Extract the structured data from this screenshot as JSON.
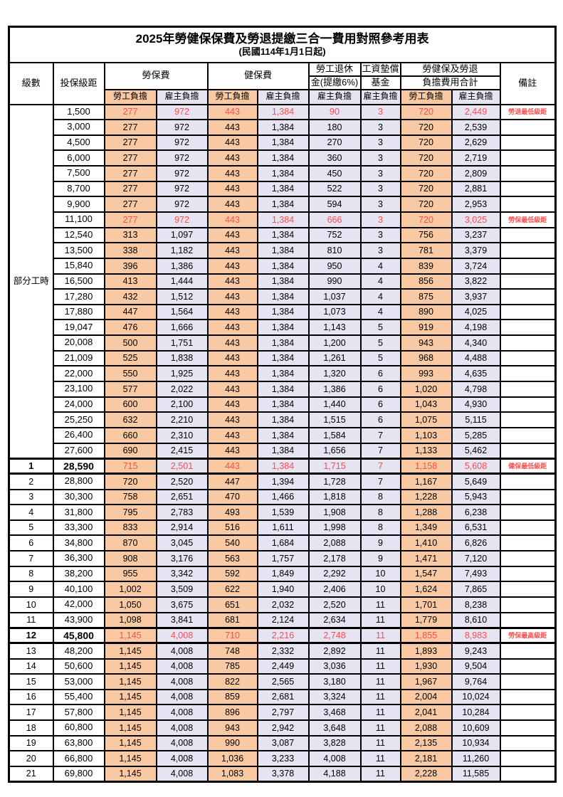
{
  "title": "2025年勞健保保費及勞退提繳三合一費用對照參考用表",
  "subtitle": "(民國114年1月1日起)",
  "colors": {
    "employee_bg": "#f8c9a2",
    "employer_bg": "#e6e3f2",
    "highlight_text": "#ff4d4d",
    "border": "#000000"
  },
  "header": {
    "level": "級數",
    "bracket": "投保級距",
    "labor_ins": "勞保費",
    "health_ins": "健保費",
    "pension_line1": "勞工退休",
    "pension_line2": "金(提繳6%)",
    "fund_line1": "工資墊償",
    "fund_line2": "基金",
    "total_line1": "勞健保及勞退",
    "total_line2": "負擔費用合計",
    "remark": "備註",
    "employee": "勞工負擔",
    "employer": "雇主負擔"
  },
  "part_time": {
    "label": "部分工時",
    "rowspan": 23
  },
  "columns_value_keys": [
    "labor_emp",
    "labor_er",
    "health_emp",
    "health_er",
    "pension_er",
    "fund_er",
    "total_emp",
    "total_er"
  ],
  "rows": [
    {
      "level": "",
      "bracket": "1,500",
      "values": [
        "277",
        "972",
        "443",
        "1,384",
        "90",
        "3",
        "720",
        "2,449"
      ],
      "remark": "勞退最低級距",
      "red": true,
      "heavy": false
    },
    {
      "level": "",
      "bracket": "3,000",
      "values": [
        "277",
        "972",
        "443",
        "1,384",
        "180",
        "3",
        "720",
        "2,539"
      ],
      "remark": "",
      "red": false,
      "heavy": false
    },
    {
      "level": "",
      "bracket": "4,500",
      "values": [
        "277",
        "972",
        "443",
        "1,384",
        "270",
        "3",
        "720",
        "2,629"
      ],
      "remark": "",
      "red": false,
      "heavy": false
    },
    {
      "level": "",
      "bracket": "6,000",
      "values": [
        "277",
        "972",
        "443",
        "1,384",
        "360",
        "3",
        "720",
        "2,719"
      ],
      "remark": "",
      "red": false,
      "heavy": false
    },
    {
      "level": "",
      "bracket": "7,500",
      "values": [
        "277",
        "972",
        "443",
        "1,384",
        "450",
        "3",
        "720",
        "2,809"
      ],
      "remark": "",
      "red": false,
      "heavy": false
    },
    {
      "level": "",
      "bracket": "8,700",
      "values": [
        "277",
        "972",
        "443",
        "1,384",
        "522",
        "3",
        "720",
        "2,881"
      ],
      "remark": "",
      "red": false,
      "heavy": false
    },
    {
      "level": "",
      "bracket": "9,900",
      "values": [
        "277",
        "972",
        "443",
        "1,384",
        "594",
        "3",
        "720",
        "2,953"
      ],
      "remark": "",
      "red": false,
      "heavy": false
    },
    {
      "level": "",
      "bracket": "11,100",
      "values": [
        "277",
        "972",
        "443",
        "1,384",
        "666",
        "3",
        "720",
        "3,025"
      ],
      "remark": "勞保最低級距",
      "red": true,
      "heavy": false
    },
    {
      "level": "",
      "bracket": "12,540",
      "values": [
        "313",
        "1,097",
        "443",
        "1,384",
        "752",
        "3",
        "756",
        "3,237"
      ],
      "remark": "",
      "red": false,
      "heavy": false
    },
    {
      "level": "",
      "bracket": "13,500",
      "values": [
        "338",
        "1,182",
        "443",
        "1,384",
        "810",
        "3",
        "781",
        "3,379"
      ],
      "remark": "",
      "red": false,
      "heavy": false
    },
    {
      "level": "",
      "bracket": "15,840",
      "values": [
        "396",
        "1,386",
        "443",
        "1,384",
        "950",
        "4",
        "839",
        "3,724"
      ],
      "remark": "",
      "red": false,
      "heavy": false
    },
    {
      "level": "",
      "bracket": "16,500",
      "values": [
        "413",
        "1,444",
        "443",
        "1,384",
        "990",
        "4",
        "856",
        "3,822"
      ],
      "remark": "",
      "red": false,
      "heavy": false
    },
    {
      "level": "",
      "bracket": "17,280",
      "values": [
        "432",
        "1,512",
        "443",
        "1,384",
        "1,037",
        "4",
        "875",
        "3,937"
      ],
      "remark": "",
      "red": false,
      "heavy": false
    },
    {
      "level": "",
      "bracket": "17,880",
      "values": [
        "447",
        "1,564",
        "443",
        "1,384",
        "1,073",
        "4",
        "890",
        "4,025"
      ],
      "remark": "",
      "red": false,
      "heavy": false
    },
    {
      "level": "",
      "bracket": "19,047",
      "values": [
        "476",
        "1,666",
        "443",
        "1,384",
        "1,143",
        "5",
        "919",
        "4,198"
      ],
      "remark": "",
      "red": false,
      "heavy": false
    },
    {
      "level": "",
      "bracket": "20,008",
      "values": [
        "500",
        "1,751",
        "443",
        "1,384",
        "1,200",
        "5",
        "943",
        "4,340"
      ],
      "remark": "",
      "red": false,
      "heavy": false
    },
    {
      "level": "",
      "bracket": "21,009",
      "values": [
        "525",
        "1,838",
        "443",
        "1,384",
        "1,261",
        "5",
        "968",
        "4,488"
      ],
      "remark": "",
      "red": false,
      "heavy": false
    },
    {
      "level": "",
      "bracket": "22,000",
      "values": [
        "550",
        "1,925",
        "443",
        "1,384",
        "1,320",
        "6",
        "993",
        "4,635"
      ],
      "remark": "",
      "red": false,
      "heavy": false
    },
    {
      "level": "",
      "bracket": "23,100",
      "values": [
        "577",
        "2,022",
        "443",
        "1,384",
        "1,386",
        "6",
        "1,020",
        "4,798"
      ],
      "remark": "",
      "red": false,
      "heavy": false
    },
    {
      "level": "",
      "bracket": "24,000",
      "values": [
        "600",
        "2,100",
        "443",
        "1,384",
        "1,440",
        "6",
        "1,043",
        "4,930"
      ],
      "remark": "",
      "red": false,
      "heavy": false
    },
    {
      "level": "",
      "bracket": "25,250",
      "values": [
        "632",
        "2,210",
        "443",
        "1,384",
        "1,515",
        "6",
        "1,075",
        "5,115"
      ],
      "remark": "",
      "red": false,
      "heavy": false
    },
    {
      "level": "",
      "bracket": "26,400",
      "values": [
        "660",
        "2,310",
        "443",
        "1,384",
        "1,584",
        "7",
        "1,103",
        "5,285"
      ],
      "remark": "",
      "red": false,
      "heavy": false
    },
    {
      "level": "",
      "bracket": "27,600",
      "values": [
        "690",
        "2,415",
        "443",
        "1,384",
        "1,656",
        "7",
        "1,133",
        "5,462"
      ],
      "remark": "",
      "red": false,
      "heavy": false
    },
    {
      "level": "1",
      "bracket": "28,590",
      "values": [
        "715",
        "2,501",
        "443",
        "1,384",
        "1,715",
        "7",
        "1,158",
        "5,608"
      ],
      "remark": "健保最低級距",
      "red": true,
      "heavy": true
    },
    {
      "level": "2",
      "bracket": "28,800",
      "values": [
        "720",
        "2,520",
        "447",
        "1,394",
        "1,728",
        "7",
        "1,167",
        "5,649"
      ],
      "remark": "",
      "red": false,
      "heavy": false
    },
    {
      "level": "3",
      "bracket": "30,300",
      "values": [
        "758",
        "2,651",
        "470",
        "1,466",
        "1,818",
        "8",
        "1,228",
        "5,943"
      ],
      "remark": "",
      "red": false,
      "heavy": false
    },
    {
      "level": "4",
      "bracket": "31,800",
      "values": [
        "795",
        "2,783",
        "493",
        "1,539",
        "1,908",
        "8",
        "1,288",
        "6,238"
      ],
      "remark": "",
      "red": false,
      "heavy": false
    },
    {
      "level": "5",
      "bracket": "33,300",
      "values": [
        "833",
        "2,914",
        "516",
        "1,611",
        "1,998",
        "8",
        "1,349",
        "6,531"
      ],
      "remark": "",
      "red": false,
      "heavy": false
    },
    {
      "level": "6",
      "bracket": "34,800",
      "values": [
        "870",
        "3,045",
        "540",
        "1,684",
        "2,088",
        "9",
        "1,410",
        "6,826"
      ],
      "remark": "",
      "red": false,
      "heavy": false
    },
    {
      "level": "7",
      "bracket": "36,300",
      "values": [
        "908",
        "3,176",
        "563",
        "1,757",
        "2,178",
        "9",
        "1,471",
        "7,120"
      ],
      "remark": "",
      "red": false,
      "heavy": false
    },
    {
      "level": "8",
      "bracket": "38,200",
      "values": [
        "955",
        "3,342",
        "592",
        "1,849",
        "2,292",
        "10",
        "1,547",
        "7,493"
      ],
      "remark": "",
      "red": false,
      "heavy": false
    },
    {
      "level": "9",
      "bracket": "40,100",
      "values": [
        "1,002",
        "3,509",
        "622",
        "1,940",
        "2,406",
        "10",
        "1,624",
        "7,865"
      ],
      "remark": "",
      "red": false,
      "heavy": false
    },
    {
      "level": "10",
      "bracket": "42,000",
      "values": [
        "1,050",
        "3,675",
        "651",
        "2,032",
        "2,520",
        "11",
        "1,701",
        "8,238"
      ],
      "remark": "",
      "red": false,
      "heavy": false
    },
    {
      "level": "11",
      "bracket": "43,900",
      "values": [
        "1,098",
        "3,841",
        "681",
        "2,124",
        "2,634",
        "11",
        "1,779",
        "8,610"
      ],
      "remark": "",
      "red": false,
      "heavy": false
    },
    {
      "level": "12",
      "bracket": "45,800",
      "values": [
        "1,145",
        "4,008",
        "710",
        "2,216",
        "2,748",
        "11",
        "1,855",
        "8,983"
      ],
      "remark": "勞保最高級距",
      "red": true,
      "heavy": true
    },
    {
      "level": "13",
      "bracket": "48,200",
      "values": [
        "1,145",
        "4,008",
        "748",
        "2,332",
        "2,892",
        "11",
        "1,893",
        "9,243"
      ],
      "remark": "",
      "red": false,
      "heavy": false
    },
    {
      "level": "14",
      "bracket": "50,600",
      "values": [
        "1,145",
        "4,008",
        "785",
        "2,449",
        "3,036",
        "11",
        "1,930",
        "9,504"
      ],
      "remark": "",
      "red": false,
      "heavy": false
    },
    {
      "level": "15",
      "bracket": "53,000",
      "values": [
        "1,145",
        "4,008",
        "822",
        "2,565",
        "3,180",
        "11",
        "1,967",
        "9,764"
      ],
      "remark": "",
      "red": false,
      "heavy": false
    },
    {
      "level": "16",
      "bracket": "55,400",
      "values": [
        "1,145",
        "4,008",
        "859",
        "2,681",
        "3,324",
        "11",
        "2,004",
        "10,024"
      ],
      "remark": "",
      "red": false,
      "heavy": false
    },
    {
      "level": "17",
      "bracket": "57,800",
      "values": [
        "1,145",
        "4,008",
        "896",
        "2,797",
        "3,468",
        "11",
        "2,041",
        "10,284"
      ],
      "remark": "",
      "red": false,
      "heavy": false
    },
    {
      "level": "18",
      "bracket": "60,800",
      "values": [
        "1,145",
        "4,008",
        "943",
        "2,942",
        "3,648",
        "11",
        "2,088",
        "10,609"
      ],
      "remark": "",
      "red": false,
      "heavy": false
    },
    {
      "level": "19",
      "bracket": "63,800",
      "values": [
        "1,145",
        "4,008",
        "990",
        "3,087",
        "3,828",
        "11",
        "2,135",
        "10,934"
      ],
      "remark": "",
      "red": false,
      "heavy": false
    },
    {
      "level": "20",
      "bracket": "66,800",
      "values": [
        "1,145",
        "4,008",
        "1,036",
        "3,233",
        "4,008",
        "11",
        "2,181",
        "11,260"
      ],
      "remark": "",
      "red": false,
      "heavy": false
    },
    {
      "level": "21",
      "bracket": "69,800",
      "values": [
        "1,145",
        "4,008",
        "1,083",
        "3,378",
        "4,188",
        "11",
        "2,228",
        "11,585"
      ],
      "remark": "",
      "red": false,
      "heavy": false
    }
  ]
}
